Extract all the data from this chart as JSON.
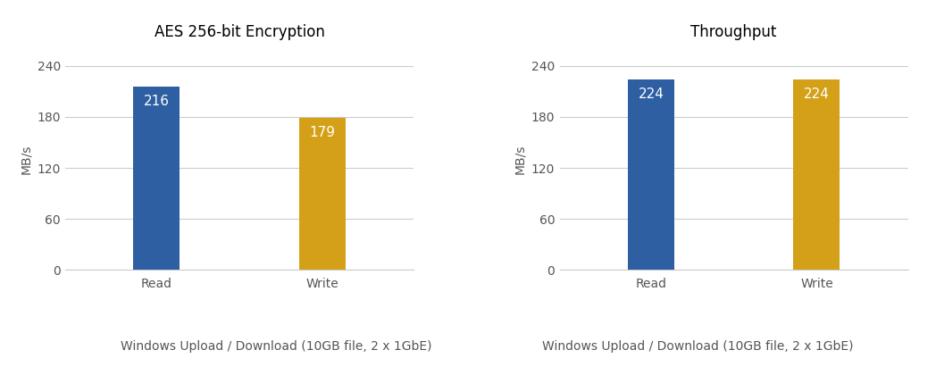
{
  "chart1": {
    "title": "AES 256-bit Encryption",
    "categories": [
      "Read",
      "Write"
    ],
    "values": [
      216,
      179
    ],
    "bar_colors": [
      "#2E5FA3",
      "#D4A017"
    ],
    "ylabel": "MB/s",
    "subtitle": "Windows Upload / Download (10GB file, 2 x 1GbE)",
    "ylim": [
      0,
      260
    ],
    "yticks": [
      0,
      60,
      120,
      180,
      240
    ]
  },
  "chart2": {
    "title": "Throughput",
    "categories": [
      "Read",
      "Write"
    ],
    "values": [
      224,
      224
    ],
    "bar_colors": [
      "#2E5FA3",
      "#D4A017"
    ],
    "ylabel": "MB/s",
    "subtitle": "Windows Upload / Download (10GB file, 2 x 1GbE)",
    "ylim": [
      0,
      260
    ],
    "yticks": [
      0,
      60,
      120,
      180,
      240
    ]
  },
  "label_fontsize": 10,
  "title_fontsize": 12,
  "subtitle_fontsize": 10,
  "value_label_fontsize": 11,
  "tick_fontsize": 10,
  "bar_width": 0.28,
  "background_color": "#FFFFFF",
  "grid_color": "#CCCCCC",
  "text_color": "#555555"
}
